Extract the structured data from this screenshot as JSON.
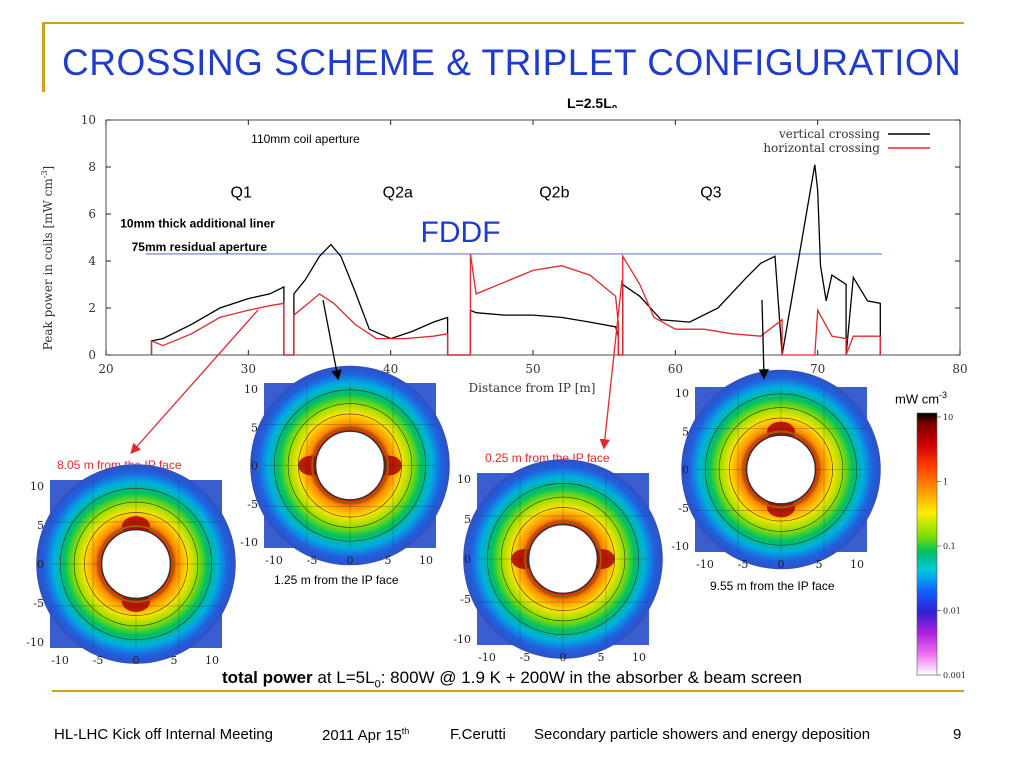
{
  "slide": {
    "title": "CROSSING SCHEME & TRIPLET CONFIGURATION",
    "l_value_main": "L=2.5L",
    "l_value_sub": "0",
    "page_number": "9"
  },
  "chart_data": {
    "type": "line",
    "xlabel": "Distance from IP [m]",
    "ylabel": "Peak power in coils [mW cm",
    "ylabel_sup": "-3",
    "ylabel_end": "]",
    "xlim": [
      20,
      80
    ],
    "ylim": [
      0,
      10
    ],
    "xticks": [
      20,
      30,
      40,
      50,
      60,
      70,
      80
    ],
    "yticks": [
      0,
      2,
      4,
      6,
      8,
      10
    ],
    "legend_position": "top-right",
    "series": [
      {
        "name": "vertical crossing",
        "color": "#000000",
        "x": [
          23.2,
          23.2,
          24,
          26,
          28,
          30,
          31.5,
          32.5,
          32.5,
          33.2,
          33.2,
          34,
          35,
          35.8,
          36.5,
          37.5,
          38.5,
          40,
          41.5,
          43,
          44,
          44,
          45.6,
          45.6,
          46,
          48,
          50,
          52,
          54,
          55.8,
          56,
          56,
          56.3,
          56.3,
          57.5,
          59,
          61,
          63,
          65,
          66,
          67,
          67.5,
          67.5,
          69.8,
          70,
          70.2,
          70.6,
          71,
          72,
          72,
          72.5,
          73.5,
          74.4,
          74.4
        ],
        "y": [
          0,
          0.6,
          0.7,
          1.3,
          2.0,
          2.4,
          2.6,
          2.9,
          0,
          0,
          2.6,
          3.2,
          4.2,
          4.7,
          4.2,
          2.7,
          1.1,
          0.7,
          1.0,
          1.4,
          1.6,
          0,
          0,
          1.9,
          1.8,
          1.7,
          1.7,
          1.6,
          1.4,
          1.2,
          0.8,
          0,
          0,
          3.0,
          2.5,
          1.5,
          1.4,
          2.0,
          3.3,
          3.9,
          4.2,
          0,
          0,
          8.1,
          7.0,
          3.8,
          2.3,
          3.4,
          3.0,
          0,
          3.3,
          2.3,
          2.2,
          0
        ]
      },
      {
        "name": "horizontal crossing",
        "color": "#e8262b",
        "x": [
          23.2,
          23.2,
          24,
          26,
          28,
          30,
          31.5,
          32.5,
          32.5,
          33.2,
          33.2,
          34,
          35,
          36,
          37.5,
          39,
          41,
          43,
          44,
          44,
          45.6,
          45.6,
          46,
          48,
          50,
          52,
          54,
          55.8,
          56,
          56,
          56.3,
          56.3,
          57.5,
          58.5,
          60,
          62,
          64,
          66,
          67.5,
          67.5,
          69.8,
          70,
          71,
          72,
          72,
          72.5,
          74,
          74.4,
          74.4
        ],
        "y": [
          0,
          0.6,
          0.4,
          0.9,
          1.6,
          1.9,
          2.1,
          2.2,
          0,
          0,
          1.7,
          2.1,
          2.6,
          2.2,
          1.3,
          0.7,
          0.7,
          0.8,
          0.9,
          0,
          0,
          4.3,
          2.6,
          3.1,
          3.6,
          3.8,
          3.4,
          2.5,
          1.3,
          0,
          0,
          4.2,
          3.0,
          1.6,
          1.1,
          1.1,
          0.9,
          0.8,
          1.5,
          0,
          0,
          1.9,
          0.8,
          0.7,
          0,
          0.8,
          0.8,
          0.8,
          0
        ]
      }
    ],
    "annotations": {
      "coil_aperture": "110mm  coil aperture",
      "liner": "10mm thick additional liner",
      "residual": "75mm residual aperture",
      "fddf": "FDDF",
      "magnets": [
        {
          "label": "Q1",
          "x": 29.5
        },
        {
          "label": "Q2a",
          "x": 40.5
        },
        {
          "label": "Q2b",
          "x": 51.5
        },
        {
          "label": "Q3",
          "x": 62.5
        }
      ],
      "aperture_line_y": 4.3
    }
  },
  "heatmaps": [
    {
      "label": "8.05 m from the IP face",
      "label_color": "#e8262b",
      "ticks": [
        "10",
        "5",
        "0",
        "-5",
        "-10"
      ],
      "xticks": [
        "-10",
        "-5",
        "0",
        "5",
        "10"
      ]
    },
    {
      "label": "1.25 m from the IP face",
      "label_color": "#000000",
      "ticks": [
        "10",
        "5",
        "0",
        "-5",
        "-10"
      ],
      "xticks": [
        "-10",
        "-5",
        "0",
        "5",
        "10"
      ]
    },
    {
      "label": "0.25 m from the IP face",
      "label_color": "#e8262b",
      "ticks": [
        "10",
        "5",
        "0",
        "-5",
        "-10"
      ],
      "xticks": [
        "-10",
        "-5",
        "0",
        "5",
        "10"
      ]
    },
    {
      "label": "9.55 m from the IP face",
      "label_color": "#000000",
      "ticks": [
        "10",
        "5",
        "0",
        "-5",
        "-10"
      ],
      "xticks": [
        "-10",
        "-5",
        "0",
        "5",
        "10"
      ]
    }
  ],
  "colorbar": {
    "unit": "mW cm",
    "unit_sup": "-3",
    "ticks": [
      "10",
      "1",
      "0.1",
      "0.01",
      "0.001"
    ]
  },
  "summary": {
    "bold": "total power",
    "rest1": " at L=5L",
    "sub": "0",
    "rest2": ": 800W @ 1.9 K + 200W in the absorber & beam screen"
  },
  "footer": {
    "meeting": "HL-LHC Kick off Internal Meeting",
    "date_main": "2011 Apr 15",
    "date_sup": "th",
    "author": "F.Cerutti",
    "topic": "Secondary particle showers and energy deposition"
  },
  "colors": {
    "title": "#1f3ccf",
    "accent": "#d4a017",
    "fddf": "#1f3ccf",
    "aperture_line": "#6b78d6",
    "arrow_red": "#e8262b"
  }
}
